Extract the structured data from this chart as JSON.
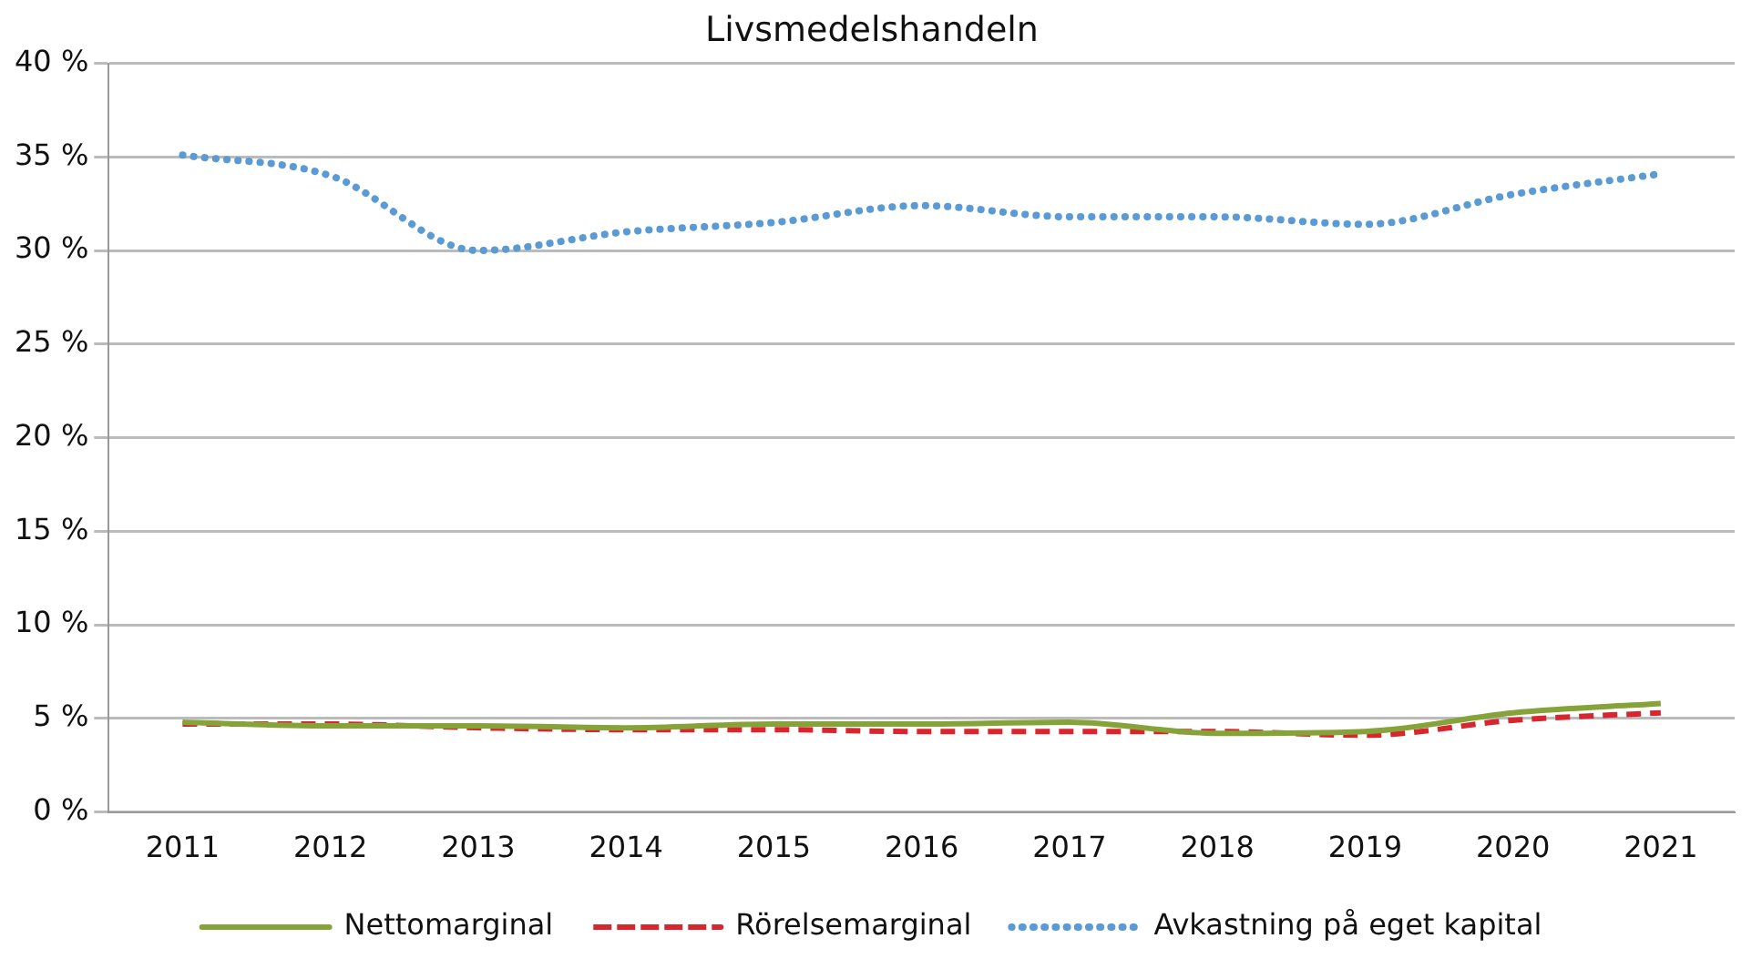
{
  "chart_data": {
    "type": "line",
    "title": "Livsmedelshandeln",
    "categories": [
      "2011",
      "2012",
      "2013",
      "2014",
      "2015",
      "2016",
      "2017",
      "2018",
      "2019",
      "2020",
      "2021"
    ],
    "series": [
      {
        "name": "Nettomarginal",
        "color": "#86a33a",
        "line_style": "solid",
        "values": [
          4.8,
          4.6,
          4.6,
          4.5,
          4.7,
          4.7,
          4.8,
          4.2,
          4.3,
          5.3,
          5.8
        ]
      },
      {
        "name": "Rörelsemarginal",
        "color": "#d7262e",
        "line_style": "dashed",
        "values": [
          4.7,
          4.7,
          4.5,
          4.4,
          4.4,
          4.3,
          4.3,
          4.3,
          4.1,
          4.9,
          5.3
        ]
      },
      {
        "name": "Avkastning på eget kapital",
        "color": "#5b9bd5",
        "line_style": "dotted",
        "values": [
          35.1,
          34.0,
          30.0,
          31.0,
          31.5,
          32.4,
          31.8,
          31.8,
          31.4,
          33.0,
          34.1
        ]
      }
    ],
    "ylim": [
      0,
      40
    ],
    "yticks": [
      {
        "value": 0,
        "label": "0 %"
      },
      {
        "value": 5,
        "label": "5 %"
      },
      {
        "value": 10,
        "label": "10 %"
      },
      {
        "value": 15,
        "label": "15 %"
      },
      {
        "value": 20,
        "label": "20 %"
      },
      {
        "value": 25,
        "label": "25 %"
      },
      {
        "value": 30,
        "label": "30 %"
      },
      {
        "value": 35,
        "label": "35 %"
      },
      {
        "value": 40,
        "label": "40 %"
      }
    ],
    "grid": "y",
    "legend": "bottom",
    "marker": "none"
  }
}
